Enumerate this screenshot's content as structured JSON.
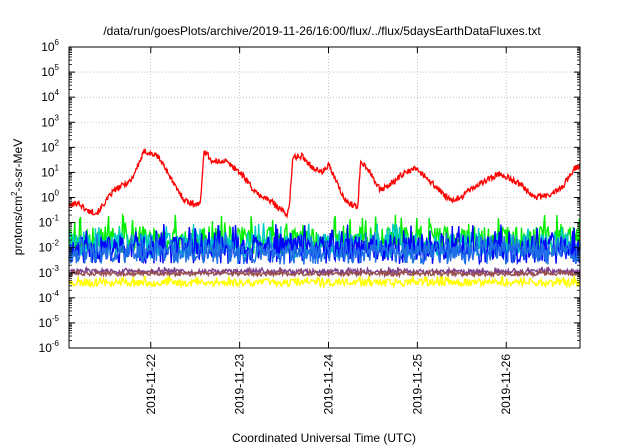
{
  "chart_data": {
    "type": "line",
    "title": "/data/run/goesPlots/archive/2019-11-26/16:00/flux/../flux/5daysEarthDataFluxes.txt",
    "xlabel": "Coordinated Universal Time (UTC)",
    "ylabel": "protons/cm2-s-sr-MeV",
    "ylabel_parts": {
      "a": "protons/cm",
      "sup": "2",
      "b": "-s-sr-MeV"
    },
    "yscale": "log",
    "ylim_exp": [
      -6,
      6
    ],
    "y_tick_base": "10",
    "y_tick_exponents": [
      "-6",
      "-5",
      "-4",
      "-3",
      "-2",
      "-1",
      "0",
      "1",
      "2",
      "3",
      "4",
      "5",
      "6"
    ],
    "xlim_days": [
      21.0,
      26.75
    ],
    "x_ticks": [
      {
        "label": "2019-11-22",
        "day": 21.92
      },
      {
        "label": "2019-11-23",
        "day": 22.92
      },
      {
        "label": "2019-11-24",
        "day": 23.92
      },
      {
        "label": "2019-11-25",
        "day": 24.92
      },
      {
        "label": "2019-11-26",
        "day": 25.92
      }
    ],
    "grid": true,
    "legend": "none",
    "series": [
      {
        "color": "#ff0000",
        "style": "noisy",
        "noise": 0.12,
        "points": [
          [
            21.0,
            0.45
          ],
          [
            21.1,
            0.65
          ],
          [
            21.2,
            0.3
          ],
          [
            21.32,
            0.25
          ],
          [
            21.5,
            1.8
          ],
          [
            21.7,
            5.0
          ],
          [
            21.85,
            70
          ],
          [
            22.0,
            45
          ],
          [
            22.1,
            12
          ],
          [
            22.2,
            2.5
          ],
          [
            22.3,
            0.8
          ],
          [
            22.4,
            0.55
          ],
          [
            22.48,
            0.6
          ],
          [
            22.52,
            80
          ],
          [
            22.62,
            25
          ],
          [
            22.75,
            30
          ],
          [
            22.9,
            12
          ],
          [
            23.0,
            5
          ],
          [
            23.1,
            1.5
          ],
          [
            23.2,
            1.0
          ],
          [
            23.3,
            0.6
          ],
          [
            23.4,
            0.3
          ],
          [
            23.45,
            0.2
          ],
          [
            23.48,
            0.5
          ],
          [
            23.52,
            40
          ],
          [
            23.62,
            45
          ],
          [
            23.75,
            15
          ],
          [
            23.85,
            10
          ],
          [
            23.92,
            20
          ],
          [
            24.0,
            5
          ],
          [
            24.1,
            0.8
          ],
          [
            24.2,
            0.5
          ],
          [
            24.25,
            0.4
          ],
          [
            24.28,
            30
          ],
          [
            24.38,
            12
          ],
          [
            24.5,
            2
          ],
          [
            24.6,
            3
          ],
          [
            24.75,
            8
          ],
          [
            24.9,
            15
          ],
          [
            25.05,
            5
          ],
          [
            25.2,
            1.5
          ],
          [
            25.3,
            0.7
          ],
          [
            25.4,
            1.0
          ],
          [
            25.55,
            2.5
          ],
          [
            25.7,
            5
          ],
          [
            25.85,
            9
          ],
          [
            25.95,
            6
          ],
          [
            26.1,
            3
          ],
          [
            26.25,
            1.0
          ],
          [
            26.4,
            1.2
          ],
          [
            26.55,
            2.5
          ],
          [
            26.68,
            14
          ],
          [
            26.75,
            18
          ]
        ]
      },
      {
        "color": "#00ee00",
        "style": "spiky",
        "base": 0.02,
        "amp": 0.55,
        "seed": 3
      },
      {
        "color": "#00c8c8",
        "style": "spiky",
        "base": 0.012,
        "amp": 0.5,
        "seed": 7
      },
      {
        "color": "#0000ff",
        "style": "spiky",
        "base": 0.008,
        "amp": 0.55,
        "seed": 11
      },
      {
        "color": "#1e6ee6",
        "style": "spiky",
        "base": 0.006,
        "amp": 0.45,
        "seed": 19
      },
      {
        "color": "#ffff00",
        "style": "spiky",
        "base": 0.0004,
        "amp": 0.15,
        "seed": 23
      },
      {
        "color": "#7a3f8f",
        "style": "spiky",
        "base": 0.0011,
        "amp": 0.1,
        "seed": 29
      },
      {
        "color": "#9a4f4f",
        "style": "spiky",
        "base": 0.0009,
        "amp": 0.08,
        "seed": 31
      }
    ]
  }
}
